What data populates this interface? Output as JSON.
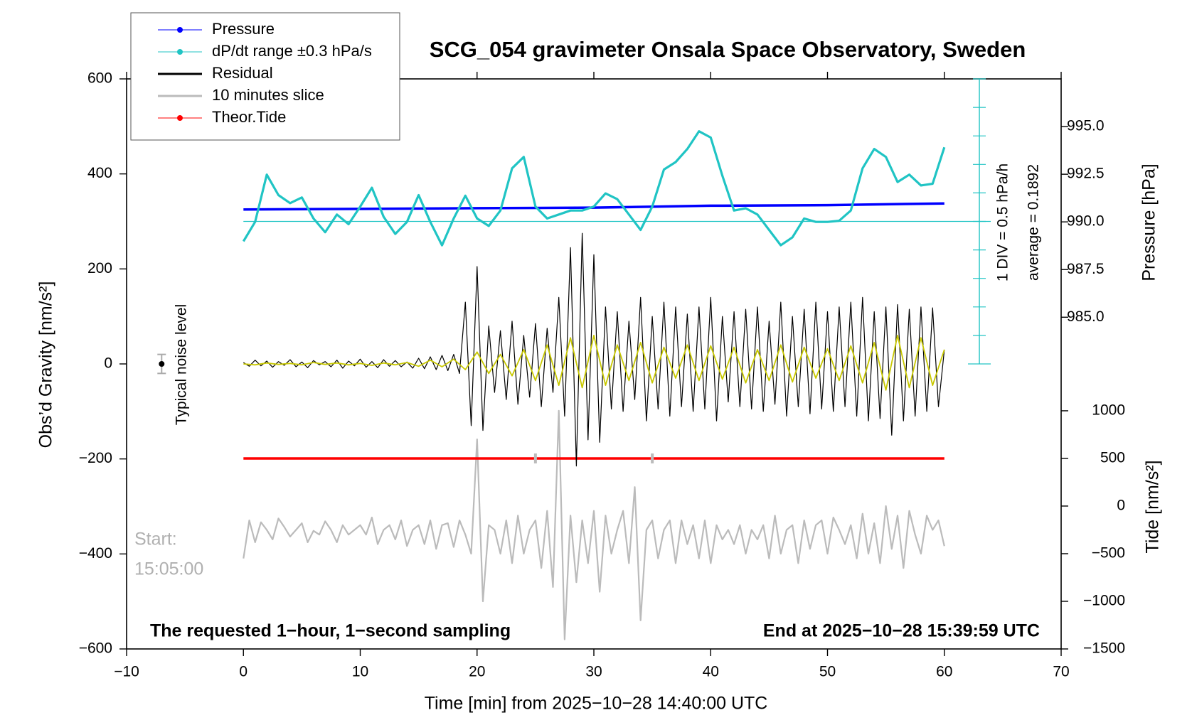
{
  "chart_data": {
    "type": "line",
    "title": "SCG_054 gravimeter Onsala Space Observatory, Sweden",
    "x_label": "Time [min] from 2025−10−28 14:40:00 UTC",
    "y_label": "Obs’d Gravity [nm/s²]",
    "y2_label": "Pressure [hPa]",
    "y3_label": "Tide [nm/s²]",
    "y4_label": "1 DIV = 0.5 hPa/h",
    "y4_average": 0.1892,
    "y4_average_label": "average = 0.1892",
    "xlim": [
      -10,
      70
    ],
    "xticks": [
      {
        "value": -10,
        "label": "−10"
      },
      0,
      10,
      20,
      30,
      40,
      50,
      60,
      70
    ],
    "ylim": [
      -600,
      600
    ],
    "yticks": [
      {
        "value": -600,
        "label": "−600"
      },
      {
        "value": -400,
        "label": "−400"
      },
      {
        "value": -200,
        "label": "−200"
      },
      0,
      200,
      400,
      600
    ],
    "y2lim": [
      967.6,
      997.5
    ],
    "y2ticks": [
      {
        "value": 985,
        "label": "985.0"
      },
      987.5,
      {
        "value": 990,
        "label": "990.0"
      },
      992.5,
      {
        "value": 995,
        "label": "995.0"
      }
    ],
    "y3lim": [
      -1500,
      4484
    ],
    "y3ticks": [
      {
        "value": -1500,
        "label": "−1500"
      },
      {
        "value": -1000,
        "label": "−1000"
      },
      {
        "value": -500,
        "label": "−500"
      },
      0,
      500,
      1000
    ],
    "y4lim": [
      -2.3108,
      2.6892
    ],
    "y4ticks": [
      -2.3108,
      -1.8108,
      -1.3108,
      -0.8108,
      -0.3108,
      0.1892,
      0.6892,
      1.1892,
      1.6892,
      2.1892,
      2.6892
    ],
    "annotations": [
      "Start:",
      "15:05:00",
      "The requested 1−hour, 1−second sampling",
      "End at 2025−10−28 15:39:59 UTC"
    ],
    "noise_label": "Typical noise level",
    "noise": {
      "x": -7,
      "value": 0,
      "error": 20
    },
    "slice_window": [
      25,
      35
    ],
    "series": [
      {
        "name": "Pressure",
        "color": "#0000ff",
        "axis": "y2",
        "marker": true,
        "x": [
          0,
          10,
          20,
          30,
          40,
          50,
          60
        ],
        "values": [
          990.65,
          990.68,
          990.72,
          990.75,
          990.85,
          990.88,
          990.97
        ]
      },
      {
        "name": "dP/dt range ±0.3 hPa/s",
        "color": "#20c4c4",
        "axis": "y4",
        "marker": true,
        "x": [
          0,
          1,
          2,
          3,
          4,
          5,
          6,
          7,
          8,
          9,
          10,
          11,
          12,
          13,
          14,
          15,
          16,
          17,
          18,
          19,
          20,
          21,
          22,
          23,
          24,
          25,
          26,
          27,
          28,
          29,
          30,
          31,
          32,
          33,
          34,
          35,
          36,
          37,
          38,
          39,
          40,
          41,
          42,
          43,
          44,
          45,
          46,
          47,
          48,
          49,
          50,
          51,
          52,
          53,
          54,
          55,
          56,
          57,
          58,
          59,
          60
        ],
        "values": [
          -0.16,
          0.18,
          1.01,
          0.65,
          0.51,
          0.61,
          0.24,
          0.0,
          0.31,
          0.14,
          0.45,
          0.78,
          0.27,
          -0.03,
          0.18,
          0.65,
          0.18,
          -0.23,
          0.24,
          0.64,
          0.24,
          0.11,
          0.38,
          1.12,
          1.32,
          0.45,
          0.24,
          0.31,
          0.38,
          0.38,
          0.45,
          0.68,
          0.58,
          0.31,
          0.04,
          0.45,
          1.1,
          1.23,
          1.46,
          1.77,
          1.66,
          0.99,
          0.38,
          0.42,
          0.31,
          0.04,
          -0.23,
          -0.09,
          0.24,
          0.18,
          0.18,
          0.2,
          0.38,
          1.12,
          1.46,
          1.32,
          0.88,
          1.01,
          0.82,
          0.85,
          1.49
        ]
      },
      {
        "name": "Residual",
        "color": "#000000",
        "axis": "y",
        "marker": false,
        "x": [
          0,
          0.5,
          1,
          1.5,
          2,
          2.5,
          3,
          3.5,
          4,
          4.5,
          5,
          5.5,
          6,
          6.5,
          7,
          7.5,
          8,
          8.5,
          9,
          9.5,
          10,
          10.5,
          11,
          11.5,
          12,
          12.5,
          13,
          13.5,
          14,
          14.5,
          15,
          15.5,
          16,
          16.5,
          17,
          17.5,
          18,
          18.5,
          19,
          19.5,
          20,
          20.5,
          21,
          21.5,
          22,
          22.5,
          23,
          23.5,
          24,
          24.5,
          25,
          25.5,
          26,
          26.5,
          27,
          27.5,
          28,
          28.5,
          29,
          29.5,
          30,
          30.5,
          31,
          31.5,
          32,
          32.5,
          33,
          33.5,
          34,
          34.5,
          35,
          35.5,
          36,
          36.5,
          37,
          37.5,
          38,
          38.5,
          39,
          39.5,
          40,
          40.5,
          41,
          41.5,
          42,
          42.5,
          43,
          43.5,
          44,
          44.5,
          45,
          45.5,
          46,
          46.5,
          47,
          47.5,
          48,
          48.5,
          49,
          49.5,
          50,
          50.5,
          51,
          51.5,
          52,
          52.5,
          53,
          53.5,
          54,
          54.5,
          55,
          55.5,
          56,
          56.5,
          57,
          57.5,
          58,
          58.5,
          59,
          59.5,
          60
        ],
        "values": [
          3,
          -5,
          8,
          -4,
          6,
          -7,
          5,
          -3,
          9,
          -6,
          4,
          -8,
          7,
          -2,
          5,
          -6,
          8,
          -9,
          6,
          -4,
          10,
          -7,
          5,
          -8,
          9,
          -5,
          7,
          -6,
          4,
          -9,
          12,
          -10,
          15,
          -12,
          18,
          -14,
          20,
          -20,
          130,
          -130,
          205,
          -140,
          80,
          -60,
          70,
          -75,
          90,
          -85,
          60,
          -70,
          85,
          -90,
          75,
          -60,
          140,
          -110,
          245,
          -215,
          275,
          -160,
          230,
          -165,
          120,
          -95,
          110,
          -100,
          90,
          -75,
          140,
          -120,
          100,
          -95,
          130,
          -110,
          120,
          -90,
          105,
          -100,
          120,
          -95,
          140,
          -120,
          100,
          -80,
          110,
          -90,
          115,
          -95,
          120,
          -100,
          90,
          -85,
          130,
          -110,
          100,
          -90,
          115,
          -105,
          130,
          -95,
          110,
          -100,
          120,
          -90,
          130,
          -110,
          140,
          -120,
          110,
          -115,
          120,
          -150,
          125,
          -120,
          115,
          -110,
          120,
          -100,
          118,
          -90,
          30
        ]
      },
      {
        "name": "10 minutes slice",
        "color": "#bbbbbb",
        "axis": "y3",
        "marker": false,
        "x": [
          0,
          0.5,
          1,
          1.5,
          2,
          2.5,
          3,
          3.5,
          4,
          4.5,
          5,
          5.5,
          6,
          6.5,
          7,
          7.5,
          8,
          8.5,
          9,
          9.5,
          10,
          10.5,
          11,
          11.5,
          12,
          12.5,
          13,
          13.5,
          14,
          14.5,
          15,
          15.5,
          16,
          16.5,
          17,
          17.5,
          18,
          18.5,
          19,
          19.5,
          20,
          20.5,
          21,
          21.5,
          22,
          22.5,
          23,
          23.5,
          24,
          24.5,
          25,
          25.5,
          26,
          26.5,
          27,
          27.5,
          28,
          28.5,
          29,
          29.5,
          30,
          30.5,
          31,
          31.5,
          32,
          32.5,
          33,
          33.5,
          34,
          34.5,
          35,
          35.5,
          36,
          36.5,
          37,
          37.5,
          38,
          38.5,
          39,
          39.5,
          40,
          40.5,
          41,
          41.5,
          42,
          42.5,
          43,
          43.5,
          44,
          44.5,
          45,
          45.5,
          46,
          46.5,
          47,
          47.5,
          48,
          48.5,
          49,
          49.5,
          50,
          50.5,
          51,
          51.5,
          52,
          52.5,
          53,
          53.5,
          54,
          54.5,
          55,
          55.5,
          56,
          56.5,
          57,
          57.5,
          58,
          58.5,
          59,
          59.5,
          60
        ],
        "values": [
          -550,
          -150,
          -380,
          -170,
          -250,
          -350,
          -130,
          -220,
          -320,
          -250,
          -180,
          -380,
          -260,
          -300,
          -160,
          -250,
          -380,
          -200,
          -300,
          -250,
          -200,
          -300,
          -120,
          -400,
          -250,
          -200,
          -350,
          -150,
          -420,
          -250,
          -200,
          -400,
          -150,
          -450,
          -200,
          -180,
          -430,
          -150,
          -300,
          -500,
          700,
          -1000,
          -200,
          -250,
          -500,
          -150,
          -600,
          -100,
          -500,
          -250,
          -150,
          -650,
          -50,
          -850,
          1000,
          -1400,
          -100,
          -800,
          -150,
          -600,
          -50,
          -900,
          -100,
          -500,
          -250,
          -50,
          -600,
          200,
          -1200,
          -250,
          -150,
          -550,
          -250,
          -150,
          -600,
          -150,
          -400,
          -200,
          -550,
          -150,
          -600,
          -200,
          -350,
          -250,
          -400,
          -200,
          -500,
          -250,
          -350,
          -200,
          -550,
          -100,
          -500,
          -250,
          -200,
          -600,
          -150,
          -450,
          -200,
          -150,
          -500,
          -120,
          -250,
          -400,
          -200,
          -550,
          -80,
          -500,
          -180,
          -600,
          0,
          -450,
          -100,
          -650,
          -50,
          -300,
          -500,
          -100,
          -250,
          -150,
          -420
        ]
      },
      {
        "name": "Theor.Tide",
        "color": "#ff0000",
        "axis": "y3",
        "marker": true,
        "x": [
          0,
          60
        ],
        "values": [
          500,
          500
        ]
      },
      {
        "color": "#c8c800",
        "axis": "y",
        "marker": false,
        "x": [
          0,
          1,
          2,
          3,
          4,
          5,
          6,
          7,
          8,
          9,
          10,
          11,
          12,
          13,
          14,
          15,
          16,
          17,
          18,
          19,
          20,
          21,
          22,
          23,
          24,
          25,
          26,
          27,
          28,
          29,
          30,
          31,
          32,
          33,
          34,
          35,
          36,
          37,
          38,
          39,
          40,
          41,
          42,
          43,
          44,
          45,
          46,
          47,
          48,
          49,
          50,
          51,
          52,
          53,
          54,
          55,
          56,
          57,
          58,
          59,
          60
        ],
        "values": [
          0,
          -2,
          2,
          -1,
          1,
          -2,
          3,
          -1,
          2,
          -2,
          1,
          -3,
          2,
          -2,
          3,
          -5,
          8,
          -6,
          10,
          -12,
          25,
          -20,
          20,
          -25,
          30,
          -35,
          40,
          -45,
          55,
          -50,
          60,
          -45,
          40,
          -35,
          45,
          -40,
          35,
          -30,
          40,
          -35,
          38,
          -32,
          35,
          -40,
          30,
          -35,
          40,
          -38,
          35,
          -30,
          32,
          -35,
          38,
          -40,
          45,
          -55,
          60,
          -50,
          55,
          -45,
          30
        ]
      }
    ]
  }
}
